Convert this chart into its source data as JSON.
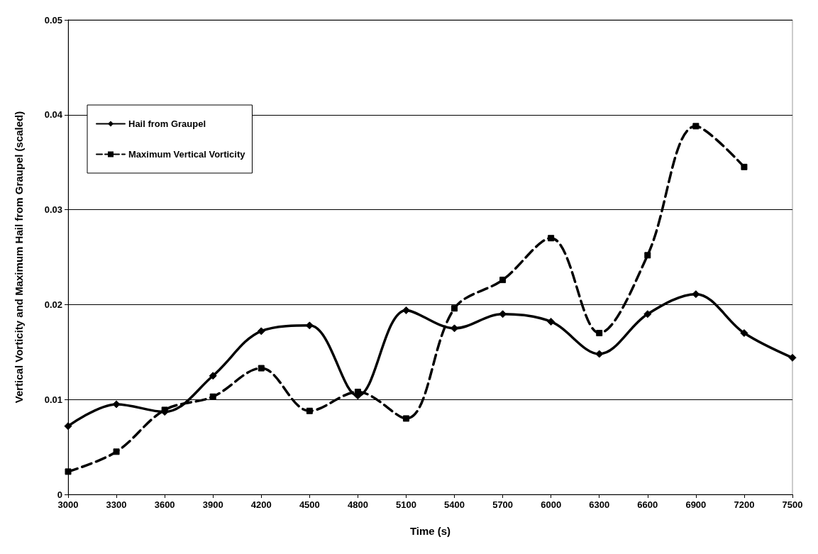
{
  "chart_data": {
    "type": "line",
    "xlabel": "Time (s)",
    "ylabel": "Vertical Vorticity and Maximum Hail from Graupel (scaled)",
    "x": [
      3000,
      3300,
      3600,
      3900,
      4200,
      4500,
      4800,
      5100,
      5400,
      5700,
      6000,
      6300,
      6600,
      6900,
      7200,
      7500
    ],
    "xlim": [
      3000,
      7500
    ],
    "xticks": [
      3000,
      3300,
      3600,
      3900,
      4200,
      4500,
      4800,
      5100,
      5400,
      5700,
      6000,
      6300,
      6600,
      6900,
      7200,
      7500
    ],
    "ylim": [
      0,
      0.05
    ],
    "yticks": [
      0,
      0.01,
      0.02,
      0.03,
      0.04,
      0.05
    ],
    "grid": "y",
    "legend": "top left",
    "series": [
      {
        "name": "Hail from Graupel",
        "color": "#000000",
        "marker": "diamond",
        "line_style": "solid",
        "values": [
          0.0072,
          0.0095,
          0.0087,
          0.0125,
          0.0172,
          0.0178,
          0.0104,
          0.0194,
          0.0175,
          0.019,
          0.0182,
          0.0148,
          0.019,
          0.0211,
          0.017,
          0.0144
        ]
      },
      {
        "name": "Maximum Vertical Vorticity",
        "color": "#000000",
        "marker": "square",
        "line_style": "dashed",
        "values": [
          0.0024,
          0.0045,
          0.0089,
          0.0103,
          0.0133,
          0.0088,
          0.0108,
          0.008,
          0.0196,
          0.0226,
          0.027,
          0.017,
          0.0252,
          0.0388,
          0.0345,
          null
        ]
      }
    ]
  }
}
